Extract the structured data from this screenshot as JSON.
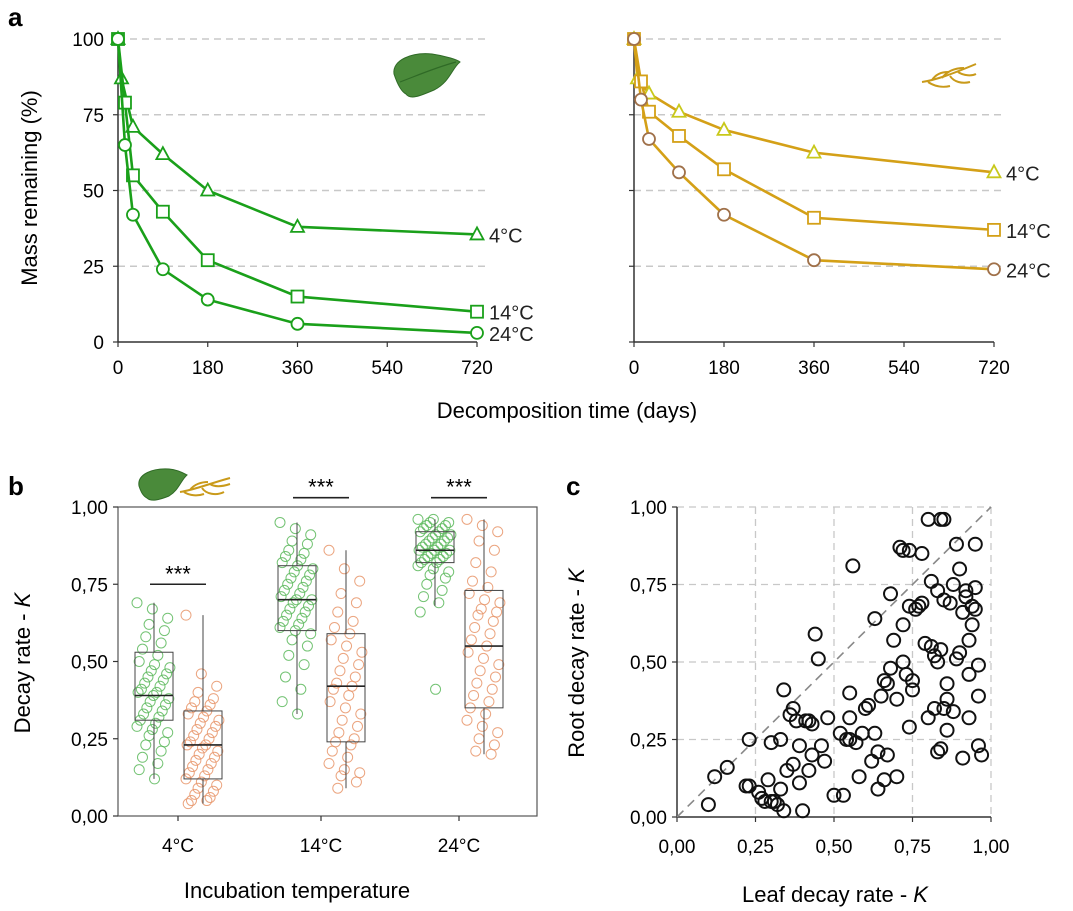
{
  "panel_labels": {
    "a": "a",
    "b": "b",
    "c": "c"
  },
  "chart_data": [
    {
      "panel": "a",
      "type": "line",
      "subpanel": "leaf",
      "icon": "leaf-icon",
      "xlabel": "Decomposition time (days)",
      "ylabel": "Mass remaining (%)",
      "xlim": [
        0,
        720
      ],
      "ylim": [
        0,
        100
      ],
      "xticks": [
        "0",
        "180",
        "360",
        "540",
        "720"
      ],
      "yticks": [
        "0",
        "25",
        "50",
        "75",
        "100"
      ],
      "grid": "horizontal dashed",
      "color": "#1aa01a",
      "series": [
        {
          "name": "4°C",
          "marker": "triangle",
          "x": [
            0,
            7,
            30,
            90,
            180,
            360,
            720
          ],
          "y": [
            100,
            87,
            71,
            62,
            50,
            38,
            35.5
          ]
        },
        {
          "name": "14°C",
          "marker": "square",
          "x": [
            0,
            14,
            30,
            90,
            180,
            360,
            720
          ],
          "y": [
            100,
            79,
            55,
            43,
            27,
            15,
            10
          ]
        },
        {
          "name": "24°C",
          "marker": "circle",
          "x": [
            0,
            14,
            30,
            90,
            180,
            360,
            720
          ],
          "y": [
            100,
            65,
            42,
            24,
            14,
            6,
            3
          ]
        }
      ]
    },
    {
      "panel": "a",
      "type": "line",
      "subpanel": "root",
      "icon": "root-icon",
      "xlim": [
        0,
        720
      ],
      "ylim": [
        0,
        100
      ],
      "xticks": [
        "0",
        "180",
        "360",
        "540",
        "720"
      ],
      "grid": "horizontal dashed",
      "series": [
        {
          "name": "4°C",
          "marker": "triangle",
          "color": "#c8c81a",
          "x": [
            0,
            7,
            30,
            90,
            180,
            360,
            720
          ],
          "y": [
            100,
            87,
            82,
            76,
            70,
            62.5,
            56
          ]
        },
        {
          "name": "14°C",
          "marker": "square",
          "color": "#d4a017",
          "x": [
            0,
            14,
            30,
            90,
            180,
            360,
            720
          ],
          "y": [
            100,
            86,
            76,
            68,
            57,
            41,
            37
          ]
        },
        {
          "name": "24°C",
          "marker": "circle",
          "color": "#a0714a",
          "x": [
            0,
            14,
            30,
            90,
            180,
            360,
            720
          ],
          "y": [
            100,
            80,
            67,
            56,
            42,
            27,
            24
          ]
        }
      ],
      "line_color": "#d4a017"
    },
    {
      "panel": "b",
      "type": "box",
      "xlabel": "Incubation temperature",
      "ylabel": "Decay rate - K",
      "ylim": [
        0,
        1
      ],
      "yticks": [
        "0,00",
        "0,25",
        "0,50",
        "0,75",
        "1,00"
      ],
      "categories": [
        "4°C",
        "14°C",
        "24°C"
      ],
      "significance": [
        "***",
        "***",
        "***"
      ],
      "groups": [
        {
          "name": "leaf",
          "color": "#5cb85c",
          "boxes": [
            {
              "q1": 0.31,
              "median": 0.39,
              "q3": 0.53,
              "min": 0.12,
              "max": 0.69
            },
            {
              "q1": 0.6,
              "median": 0.7,
              "q3": 0.81,
              "min": 0.33,
              "max": 0.95
            },
            {
              "q1": 0.82,
              "median": 0.86,
              "q3": 0.92,
              "min": 0.68,
              "max": 0.96
            }
          ]
        },
        {
          "name": "root",
          "color": "#e8956a",
          "boxes": [
            {
              "q1": 0.12,
              "median": 0.23,
              "q3": 0.34,
              "min": 0.04,
              "max": 0.65
            },
            {
              "q1": 0.24,
              "median": 0.42,
              "q3": 0.59,
              "min": 0.09,
              "max": 0.86
            },
            {
              "q1": 0.35,
              "median": 0.55,
              "q3": 0.73,
              "min": 0.2,
              "max": 0.96
            }
          ]
        }
      ],
      "points": {
        "leaf": [
          [
            0.69,
            0.67,
            0.64,
            0.62,
            0.6,
            0.58,
            0.56,
            0.54,
            0.52,
            0.5,
            0.49,
            0.48,
            0.47,
            0.46,
            0.45,
            0.44,
            0.43,
            0.42,
            0.41,
            0.4,
            0.4,
            0.39,
            0.38,
            0.37,
            0.36,
            0.35,
            0.34,
            0.33,
            0.32,
            0.31,
            0.3,
            0.29,
            0.28,
            0.27,
            0.26,
            0.24,
            0.23,
            0.21,
            0.19,
            0.17,
            0.15,
            0.12
          ],
          [
            0.95,
            0.93,
            0.91,
            0.89,
            0.88,
            0.86,
            0.85,
            0.84,
            0.83,
            0.82,
            0.81,
            0.8,
            0.79,
            0.78,
            0.77,
            0.76,
            0.75,
            0.74,
            0.73,
            0.72,
            0.71,
            0.7,
            0.7,
            0.69,
            0.68,
            0.67,
            0.66,
            0.65,
            0.64,
            0.63,
            0.62,
            0.61,
            0.6,
            0.59,
            0.57,
            0.55,
            0.52,
            0.49,
            0.45,
            0.41,
            0.37,
            0.33
          ],
          [
            0.96,
            0.96,
            0.95,
            0.95,
            0.94,
            0.94,
            0.93,
            0.93,
            0.92,
            0.92,
            0.91,
            0.91,
            0.9,
            0.9,
            0.89,
            0.89,
            0.88,
            0.88,
            0.87,
            0.87,
            0.86,
            0.86,
            0.86,
            0.85,
            0.85,
            0.84,
            0.84,
            0.83,
            0.83,
            0.82,
            0.82,
            0.81,
            0.8,
            0.79,
            0.78,
            0.77,
            0.75,
            0.73,
            0.71,
            0.69,
            0.66,
            0.41
          ]
        ],
        "root": [
          [
            0.65,
            0.46,
            0.42,
            0.4,
            0.38,
            0.37,
            0.36,
            0.35,
            0.34,
            0.33,
            0.32,
            0.31,
            0.3,
            0.29,
            0.28,
            0.27,
            0.26,
            0.25,
            0.24,
            0.23,
            0.23,
            0.22,
            0.21,
            0.2,
            0.19,
            0.18,
            0.17,
            0.16,
            0.15,
            0.14,
            0.13,
            0.12,
            0.11,
            0.1,
            0.09,
            0.08,
            0.07,
            0.06,
            0.05,
            0.05,
            0.04
          ],
          [
            0.86,
            0.8,
            0.76,
            0.72,
            0.69,
            0.66,
            0.63,
            0.61,
            0.59,
            0.57,
            0.55,
            0.53,
            0.51,
            0.49,
            0.47,
            0.45,
            0.43,
            0.42,
            0.41,
            0.39,
            0.37,
            0.35,
            0.33,
            0.31,
            0.29,
            0.27,
            0.25,
            0.24,
            0.23,
            0.21,
            0.19,
            0.17,
            0.15,
            0.14,
            0.13,
            0.11,
            0.09
          ],
          [
            0.96,
            0.94,
            0.92,
            0.89,
            0.86,
            0.82,
            0.79,
            0.76,
            0.74,
            0.72,
            0.7,
            0.69,
            0.67,
            0.66,
            0.65,
            0.63,
            0.61,
            0.59,
            0.57,
            0.55,
            0.53,
            0.51,
            0.49,
            0.47,
            0.45,
            0.43,
            0.41,
            0.39,
            0.37,
            0.35,
            0.33,
            0.31,
            0.29,
            0.27,
            0.25,
            0.23,
            0.21,
            0.2
          ]
        ]
      }
    },
    {
      "panel": "c",
      "type": "scatter",
      "xlabel": "Leaf decay rate - K",
      "ylabel": "Root decay rate - K",
      "xlim": [
        0,
        1
      ],
      "ylim": [
        0,
        1
      ],
      "xticks": [
        "0,00",
        "0,25",
        "0,50",
        "0,75",
        "1,00"
      ],
      "yticks": [
        "0,00",
        "0,25",
        "0,50",
        "0,75",
        "1,00"
      ],
      "grid": "dashed",
      "reference_line": "1:1 dashed",
      "points": [
        [
          0.1,
          0.04
        ],
        [
          0.12,
          0.13
        ],
        [
          0.16,
          0.16
        ],
        [
          0.22,
          0.1
        ],
        [
          0.23,
          0.1
        ],
        [
          0.23,
          0.25
        ],
        [
          0.26,
          0.08
        ],
        [
          0.27,
          0.06
        ],
        [
          0.28,
          0.05
        ],
        [
          0.29,
          0.12
        ],
        [
          0.3,
          0.05
        ],
        [
          0.3,
          0.24
        ],
        [
          0.31,
          0.05
        ],
        [
          0.32,
          0.04
        ],
        [
          0.33,
          0.25
        ],
        [
          0.33,
          0.09
        ],
        [
          0.34,
          0.41
        ],
        [
          0.34,
          0.02
        ],
        [
          0.35,
          0.15
        ],
        [
          0.36,
          0.33
        ],
        [
          0.37,
          0.17
        ],
        [
          0.37,
          0.35
        ],
        [
          0.38,
          0.31
        ],
        [
          0.39,
          0.11
        ],
        [
          0.39,
          0.23
        ],
        [
          0.4,
          0.02
        ],
        [
          0.41,
          0.31
        ],
        [
          0.42,
          0.31
        ],
        [
          0.42,
          0.15
        ],
        [
          0.43,
          0.3
        ],
        [
          0.43,
          0.2
        ],
        [
          0.44,
          0.59
        ],
        [
          0.45,
          0.51
        ],
        [
          0.46,
          0.23
        ],
        [
          0.47,
          0.18
        ],
        [
          0.48,
          0.32
        ],
        [
          0.5,
          0.07
        ],
        [
          0.52,
          0.27
        ],
        [
          0.53,
          0.07
        ],
        [
          0.54,
          0.25
        ],
        [
          0.55,
          0.32
        ],
        [
          0.55,
          0.4
        ],
        [
          0.55,
          0.25
        ],
        [
          0.56,
          0.81
        ],
        [
          0.57,
          0.24
        ],
        [
          0.58,
          0.13
        ],
        [
          0.59,
          0.27
        ],
        [
          0.6,
          0.35
        ],
        [
          0.61,
          0.36
        ],
        [
          0.62,
          0.18
        ],
        [
          0.63,
          0.64
        ],
        [
          0.63,
          0.27
        ],
        [
          0.64,
          0.09
        ],
        [
          0.64,
          0.21
        ],
        [
          0.65,
          0.39
        ],
        [
          0.66,
          0.44
        ],
        [
          0.66,
          0.12
        ],
        [
          0.67,
          0.2
        ],
        [
          0.67,
          0.43
        ],
        [
          0.68,
          0.48
        ],
        [
          0.68,
          0.72
        ],
        [
          0.69,
          0.57
        ],
        [
          0.7,
          0.13
        ],
        [
          0.7,
          0.38
        ],
        [
          0.71,
          0.87
        ],
        [
          0.72,
          0.62
        ],
        [
          0.72,
          0.86
        ],
        [
          0.72,
          0.5
        ],
        [
          0.73,
          0.46
        ],
        [
          0.74,
          0.68
        ],
        [
          0.74,
          0.86
        ],
        [
          0.74,
          0.29
        ],
        [
          0.75,
          0.44
        ],
        [
          0.75,
          0.41
        ],
        [
          0.76,
          0.67
        ],
        [
          0.77,
          0.68
        ],
        [
          0.78,
          0.85
        ],
        [
          0.78,
          0.69
        ],
        [
          0.79,
          0.56
        ],
        [
          0.8,
          0.32
        ],
        [
          0.8,
          0.96
        ],
        [
          0.81,
          0.76
        ],
        [
          0.81,
          0.55
        ],
        [
          0.82,
          0.52
        ],
        [
          0.82,
          0.35
        ],
        [
          0.83,
          0.73
        ],
        [
          0.83,
          0.21
        ],
        [
          0.83,
          0.5
        ],
        [
          0.84,
          0.22
        ],
        [
          0.84,
          0.96
        ],
        [
          0.84,
          0.54
        ],
        [
          0.85,
          0.7
        ],
        [
          0.85,
          0.96
        ],
        [
          0.85,
          0.35
        ],
        [
          0.86,
          0.38
        ],
        [
          0.86,
          0.43
        ],
        [
          0.86,
          0.28
        ],
        [
          0.87,
          0.69
        ],
        [
          0.88,
          0.75
        ],
        [
          0.88,
          0.34
        ],
        [
          0.89,
          0.88
        ],
        [
          0.89,
          0.51
        ],
        [
          0.9,
          0.8
        ],
        [
          0.9,
          0.53
        ],
        [
          0.91,
          0.66
        ],
        [
          0.91,
          0.19
        ],
        [
          0.92,
          0.73
        ],
        [
          0.92,
          0.71
        ],
        [
          0.93,
          0.57
        ],
        [
          0.93,
          0.46
        ],
        [
          0.94,
          0.62
        ],
        [
          0.94,
          0.68
        ],
        [
          0.95,
          0.88
        ],
        [
          0.95,
          0.74
        ],
        [
          0.96,
          0.39
        ],
        [
          0.96,
          0.49
        ],
        [
          0.96,
          0.23
        ],
        [
          0.97,
          0.2
        ],
        [
          0.95,
          0.67
        ],
        [
          0.93,
          0.32
        ]
      ]
    }
  ]
}
